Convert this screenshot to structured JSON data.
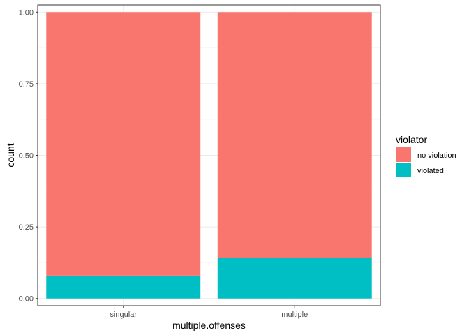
{
  "chart_data": {
    "type": "bar",
    "stacked": true,
    "categories": [
      "singular",
      "multiple"
    ],
    "series": [
      {
        "name": "no violation",
        "color": "#F8766D",
        "values": [
          0.92,
          0.858
        ]
      },
      {
        "name": "violated",
        "color": "#00BFC4",
        "values": [
          0.08,
          0.142
        ]
      }
    ],
    "xlabel": "multiple.offenses",
    "ylabel": "count",
    "ylim": [
      -0.025,
      1.025
    ],
    "yticks": [
      0.0,
      0.25,
      0.5,
      0.75,
      1.0
    ],
    "ytick_labels": [
      "0.00",
      "0.25",
      "0.50",
      "0.75",
      "1.00"
    ],
    "grid": true,
    "legend": {
      "title": "violator",
      "placement": "right"
    }
  }
}
